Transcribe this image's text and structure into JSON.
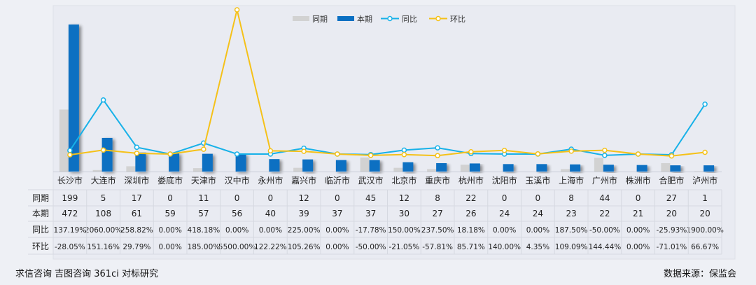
{
  "chart_data": {
    "type": "bar",
    "categories": [
      "长沙市",
      "大连市",
      "深圳市",
      "娄底市",
      "天津市",
      "汉中市",
      "永州市",
      "嘉兴市",
      "临沂市",
      "武汉市",
      "北京市",
      "重庆市",
      "杭州市",
      "沈阳市",
      "玉溪市",
      "上海市",
      "广州市",
      "株洲市",
      "合肥市",
      "泸州市"
    ],
    "series": [
      {
        "name": "同期",
        "type": "bar",
        "values": [
          199,
          5,
          17,
          0,
          11,
          0,
          0,
          12,
          0,
          45,
          12,
          8,
          22,
          0,
          0,
          8,
          44,
          0,
          27,
          1
        ]
      },
      {
        "name": "本期",
        "type": "bar",
        "values": [
          472,
          108,
          61,
          59,
          57,
          56,
          40,
          39,
          37,
          37,
          30,
          27,
          26,
          24,
          24,
          23,
          22,
          21,
          20,
          20
        ]
      },
      {
        "name": "同比",
        "type": "line",
        "values": [
          137.19,
          2060.0,
          258.82,
          0.0,
          418.18,
          0.0,
          0.0,
          225.0,
          0.0,
          -17.78,
          150.0,
          237.5,
          18.18,
          0.0,
          0.0,
          187.5,
          -50.0,
          0.0,
          -25.93,
          1900.0
        ]
      },
      {
        "name": "环比",
        "type": "line",
        "values": [
          -28.05,
          151.16,
          29.79,
          0.0,
          185.0,
          5500.0,
          122.22,
          105.26,
          0.0,
          -50.0,
          -21.05,
          -57.81,
          85.71,
          140.0,
          4.35,
          109.09,
          144.44,
          0.0,
          -71.01,
          66.67
        ]
      }
    ],
    "table": {
      "row_labels": [
        "同期",
        "本期",
        "同比",
        "环比"
      ],
      "rows": [
        [
          "199",
          "5",
          "17",
          "0",
          "11",
          "0",
          "0",
          "12",
          "0",
          "45",
          "12",
          "8",
          "22",
          "0",
          "0",
          "8",
          "44",
          "0",
          "27",
          "1"
        ],
        [
          "472",
          "108",
          "61",
          "59",
          "57",
          "56",
          "40",
          "39",
          "37",
          "37",
          "30",
          "27",
          "26",
          "24",
          "24",
          "23",
          "22",
          "21",
          "20",
          "20"
        ],
        [
          "137.19%",
          "2060.00%",
          "258.82%",
          "0.00%",
          "418.18%",
          "0.00%",
          "0.00%",
          "225.00%",
          "0.00%",
          "-17.78%",
          "150.00%",
          "237.50%",
          "18.18%",
          "0.00%",
          "0.00%",
          "187.50%",
          "-50.00%",
          "0.00%",
          "-25.93%",
          "1900.00%"
        ],
        [
          "-28.05%",
          "151.16%",
          "29.79%",
          "0.00%",
          "185.00%",
          "5500.00%",
          "122.22%",
          "105.26%",
          "0.00%",
          "-50.00%",
          "-21.05%",
          "-57.81%",
          "85.71%",
          "140.00%",
          "4.35%",
          "109.09%",
          "144.44%",
          "0.00%",
          "-71.01%",
          "66.67%"
        ]
      ]
    },
    "legend_position": "top-center",
    "grid": false
  },
  "colors": {
    "prior": "#d2d2d2",
    "current": "#0a6fc2",
    "yoy": "#17b1e8",
    "mom": "#f5c118"
  },
  "footer": {
    "left": "求信咨询  吉图咨询  361ci  对标研究",
    "right": "数据来源：保监会"
  }
}
